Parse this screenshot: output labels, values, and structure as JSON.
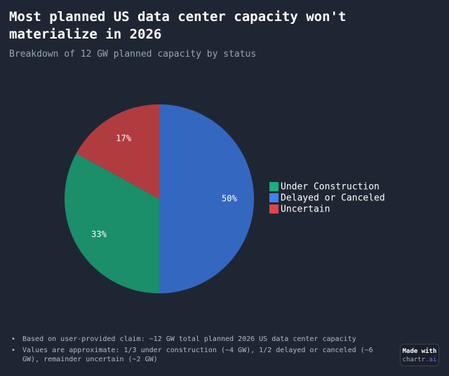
{
  "header": {
    "title": "Most planned US data center capacity won't materialize in 2026",
    "subtitle": "Breakdown of 12 GW planned capacity by status"
  },
  "chart_data": {
    "type": "pie",
    "title": "Most planned US data center capacity won't materialize in 2026",
    "subtitle": "Breakdown of 12 GW planned capacity by status",
    "categories": [
      "Under Construction",
      "Delayed or Canceled",
      "Uncertain"
    ],
    "values": [
      33,
      50,
      17
    ],
    "value_labels": [
      "33%",
      "50%",
      "17%"
    ],
    "unit": "%",
    "legend_position": "right",
    "slice_colors": [
      "#1a8f6a",
      "#3467c0",
      "#b13c3f"
    ],
    "legend_colors": [
      "#17b07e",
      "#3f82ee",
      "#e0444a"
    ]
  },
  "notes": [
    "Based on user-provided claim: ~12 GW total planned 2026 US data center capacity",
    "Values are approximate: 1/3 under construction (~4 GW), 1/2 delayed or canceled (~6 GW), remainder uncertain (~2 GW)"
  ],
  "badge": {
    "made_with": "Made with",
    "brand_name": "chartr",
    "brand_ext": ".ai"
  }
}
